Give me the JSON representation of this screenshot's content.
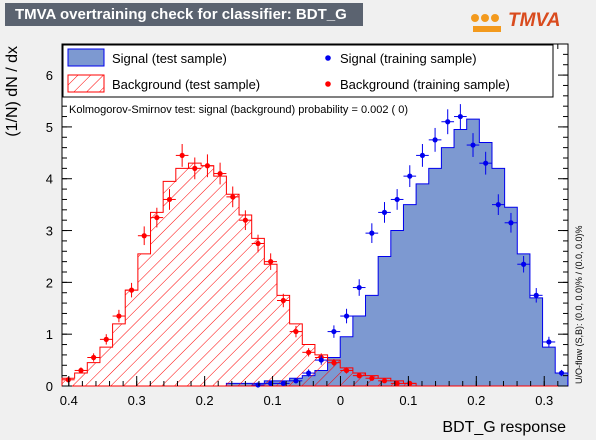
{
  "title": "TMVA overtraining check for classifier: BDT_G",
  "logo_text": "TMVA",
  "colors": {
    "signal_fill": "#7d99d1",
    "signal_line": "#0000ee",
    "background_line": "#ff0000",
    "title_bg": "#5b6370"
  },
  "chart_data": {
    "type": "histogram",
    "xlabel": "BDT_G response",
    "ylabel": "(1/N) dN / dx",
    "xlim": [
      -0.41,
      0.335
    ],
    "ylim": [
      0,
      6.6
    ],
    "x_ticks": [
      -0.4,
      -0.3,
      -0.2,
      -0.1,
      0,
      0.1,
      0.2,
      0.3
    ],
    "x_tick_labels": [
      "0.4",
      "0.3",
      "0.2",
      "0.1",
      "0",
      "0.1",
      "0.2",
      "0.3"
    ],
    "y_ticks": [
      0,
      1,
      2,
      3,
      4,
      5,
      6
    ],
    "ks_text": "Kolmogorov-Smirnov test: signal (background) probability = 0.002 (    0)",
    "overflow_text": "U/O-flow (S,B): (0.0, 0.0)% / (0.0, 0.0)%",
    "legend": [
      "Signal (test sample)",
      "Signal (training sample)",
      "Background (test sample)",
      "Background (training sample)"
    ],
    "bin_edges_start": -0.41,
    "bin_width": 0.01862,
    "bin_count": 40,
    "signal_test": [
      0,
      0,
      0,
      0,
      0,
      0,
      0,
      0,
      0,
      0,
      0,
      0,
      0,
      0.05,
      0.05,
      0.05,
      0.1,
      0.1,
      0.15,
      0.2,
      0.3,
      0.55,
      0.95,
      1.35,
      1.75,
      2.5,
      3.0,
      3.5,
      3.9,
      4.2,
      4.6,
      4.95,
      5.15,
      4.7,
      4.2,
      3.45,
      2.55,
      1.7,
      0.75,
      0.25
    ],
    "background_test": [
      0.15,
      0.25,
      0.45,
      0.75,
      1.2,
      1.85,
      2.55,
      3.35,
      3.95,
      4.2,
      4.3,
      4.25,
      4.05,
      3.7,
      3.3,
      2.85,
      2.35,
      1.75,
      1.2,
      0.8,
      0.6,
      0.5,
      0.35,
      0.25,
      0.2,
      0.15,
      0.1,
      0.05,
      0,
      0,
      0,
      0,
      0,
      0,
      0,
      0,
      0,
      0,
      0,
      0
    ],
    "signal_train": [
      null,
      null,
      null,
      null,
      null,
      null,
      null,
      null,
      null,
      null,
      null,
      null,
      null,
      null,
      null,
      0.02,
      0.05,
      0.05,
      0.1,
      0.25,
      0.5,
      1.05,
      1.35,
      1.9,
      2.95,
      3.35,
      3.6,
      4.05,
      4.45,
      4.75,
      5.1,
      5.2,
      4.65,
      4.3,
      3.5,
      3.15,
      2.35,
      1.75,
      0.85,
      0.25
    ],
    "background_train": [
      0.12,
      0.3,
      0.55,
      0.9,
      1.35,
      1.85,
      2.9,
      3.25,
      3.6,
      4.45,
      4.2,
      4.25,
      4.1,
      3.65,
      3.2,
      2.75,
      2.4,
      1.65,
      1.05,
      0.65,
      0.55,
      0.45,
      0.3,
      0.2,
      0.15,
      0.1,
      0.05,
      0.05,
      null,
      null,
      null,
      null,
      null,
      null,
      null,
      null,
      null,
      null,
      null,
      null
    ],
    "signal_train_err": [
      0,
      0,
      0,
      0,
      0,
      0,
      0,
      0,
      0,
      0,
      0,
      0,
      0,
      0,
      0,
      0.03,
      0.04,
      0.04,
      0.05,
      0.07,
      0.09,
      0.12,
      0.14,
      0.16,
      0.19,
      0.2,
      0.2,
      0.21,
      0.22,
      0.23,
      0.24,
      0.24,
      0.23,
      0.22,
      0.2,
      0.19,
      0.16,
      0.14,
      0.1,
      0.06
    ],
    "background_train_err": [
      0.04,
      0.06,
      0.08,
      0.1,
      0.12,
      0.14,
      0.18,
      0.19,
      0.2,
      0.22,
      0.21,
      0.22,
      0.21,
      0.2,
      0.19,
      0.17,
      0.16,
      0.13,
      0.11,
      0.08,
      0.08,
      0.07,
      0.06,
      0.05,
      0.04,
      0.03,
      0.02,
      0.02,
      0,
      0,
      0,
      0,
      0,
      0,
      0,
      0,
      0,
      0,
      0,
      0
    ]
  }
}
